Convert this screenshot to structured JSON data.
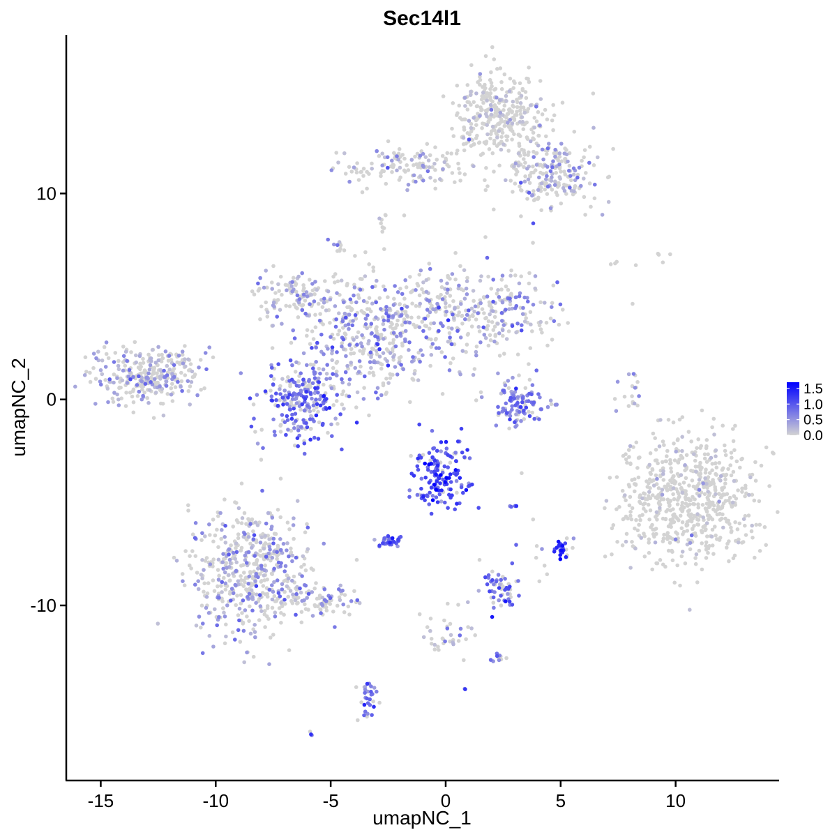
{
  "chart_data": {
    "type": "scatter",
    "title": "Sec14l1",
    "xlabel": "umapNC_1",
    "ylabel": "umapNC_2",
    "xlim": [
      -16.5,
      14.5
    ],
    "ylim": [
      -18.5,
      17.7
    ],
    "x_ticks": [
      -15,
      -10,
      -5,
      0,
      5,
      10
    ],
    "x_tick_labels": [
      "-15",
      "-10",
      "-5",
      "0",
      "5",
      "10"
    ],
    "y_ticks": [
      -10,
      0,
      10
    ],
    "y_tick_labels": [
      "-10",
      "0",
      "10"
    ],
    "grid": false,
    "legend": {
      "placement": "right",
      "type": "colorbar",
      "min": 0.0,
      "max": 1.7,
      "ticks": [
        0.0,
        0.5,
        1.0,
        1.5
      ],
      "tick_labels": [
        "0.0",
        "0.5",
        "1.0",
        "1.5"
      ],
      "low_color": "#d3d3d3",
      "high_color": "#0000ff"
    },
    "clusters": [
      {
        "cx": -13.0,
        "cy": 1.2,
        "sx": 1.1,
        "sy": 0.7,
        "n": 300,
        "expr": 0.4
      },
      {
        "cx": -6.2,
        "cy": 0.0,
        "sx": 0.9,
        "sy": 1.0,
        "n": 260,
        "expr": 0.75
      },
      {
        "cx": -3.2,
        "cy": 3.2,
        "sx": 1.6,
        "sy": 1.5,
        "n": 380,
        "expr": 0.5
      },
      {
        "cx": 1.0,
        "cy": 4.3,
        "sx": 2.0,
        "sy": 1.0,
        "n": 330,
        "expr": 0.45
      },
      {
        "cx": -6.5,
        "cy": 5.0,
        "sx": 0.9,
        "sy": 0.6,
        "n": 100,
        "expr": 0.35
      },
      {
        "cx": 2.4,
        "cy": 13.8,
        "sx": 0.9,
        "sy": 1.0,
        "n": 330,
        "expr": 0.15
      },
      {
        "cx": 4.5,
        "cy": 11.0,
        "sx": 1.0,
        "sy": 0.9,
        "n": 220,
        "expr": 0.35
      },
      {
        "cx": -1.8,
        "cy": 11.3,
        "sx": 1.4,
        "sy": 0.5,
        "n": 130,
        "expr": 0.3
      },
      {
        "cx": 10.5,
        "cy": -4.8,
        "sx": 1.5,
        "sy": 1.6,
        "n": 650,
        "expr": 0.06
      },
      {
        "cx": -8.5,
        "cy": -8.3,
        "sx": 1.3,
        "sy": 1.5,
        "n": 520,
        "expr": 0.4
      },
      {
        "cx": -5.5,
        "cy": -9.8,
        "sx": 1.1,
        "sy": 0.4,
        "n": 80,
        "expr": 0.45
      },
      {
        "cx": 3.2,
        "cy": -0.2,
        "sx": 0.6,
        "sy": 0.6,
        "n": 110,
        "expr": 0.7
      },
      {
        "cx": -0.2,
        "cy": -3.6,
        "sx": 0.6,
        "sy": 0.8,
        "n": 150,
        "expr": 1.1
      },
      {
        "cx": -2.4,
        "cy": -6.9,
        "sx": 0.3,
        "sy": 0.2,
        "n": 35,
        "expr": 0.9
      },
      {
        "cx": 2.3,
        "cy": -9.2,
        "sx": 0.4,
        "sy": 0.5,
        "n": 55,
        "expr": 0.8
      },
      {
        "cx": 5.0,
        "cy": -7.2,
        "sx": 0.1,
        "sy": 0.2,
        "n": 22,
        "expr": 1.4
      },
      {
        "cx": -3.4,
        "cy": -14.6,
        "sx": 0.2,
        "sy": 0.6,
        "n": 30,
        "expr": 0.8
      },
      {
        "cx": 0.0,
        "cy": -11.3,
        "sx": 0.5,
        "sy": 0.6,
        "n": 35,
        "expr": 0.3
      },
      {
        "cx": 2.3,
        "cy": -12.5,
        "sx": 0.2,
        "sy": 0.1,
        "n": 10,
        "expr": 0.6
      },
      {
        "cx": -4.7,
        "cy": 7.3,
        "sx": 0.2,
        "sy": 0.2,
        "n": 10,
        "expr": 0.5
      },
      {
        "cx": -2.8,
        "cy": 8.7,
        "sx": 0.1,
        "sy": 0.4,
        "n": 8,
        "expr": 0.6
      },
      {
        "cx": 8.0,
        "cy": 0.5,
        "sx": 0.3,
        "sy": 0.6,
        "n": 18,
        "expr": 0.5
      },
      {
        "cx": 9.0,
        "cy": 6.7,
        "sx": 1.0,
        "sy": 0.2,
        "n": 8,
        "expr": 0.0
      },
      {
        "cx": 4.2,
        "cy": -7.8,
        "sx": 0.8,
        "sy": 0.8,
        "n": 12,
        "expr": 0.3
      },
      {
        "cx": 3.0,
        "cy": -5.2,
        "sx": 0.1,
        "sy": 0.05,
        "n": 5,
        "expr": 1.0
      },
      {
        "cx": -5.9,
        "cy": -16.2,
        "sx": 0.1,
        "sy": 0.1,
        "n": 3,
        "expr": 0.8
      },
      {
        "cx": 0.8,
        "cy": -14.0,
        "sx": 0.05,
        "sy": 0.05,
        "n": 2,
        "expr": 0.9
      }
    ]
  }
}
